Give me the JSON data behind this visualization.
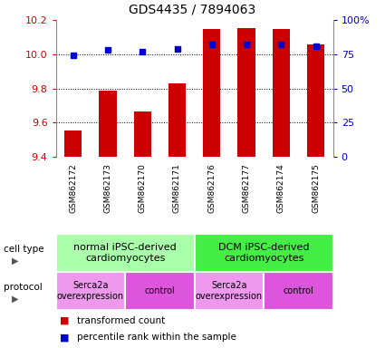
{
  "title": "GDS4435 / 7894063",
  "samples": [
    "GSM862172",
    "GSM862173",
    "GSM862170",
    "GSM862171",
    "GSM862176",
    "GSM862177",
    "GSM862174",
    "GSM862175"
  ],
  "bar_values": [
    9.555,
    9.785,
    9.665,
    9.83,
    10.145,
    10.15,
    10.145,
    10.055
  ],
  "percentile_values": [
    74,
    78,
    77,
    79,
    82,
    82,
    82,
    81
  ],
  "bar_color": "#cc0000",
  "dot_color": "#0000cc",
  "ylim_left": [
    9.4,
    10.2
  ],
  "ylim_right": [
    0,
    100
  ],
  "yticks_left": [
    9.4,
    9.6,
    9.8,
    10.0,
    10.2
  ],
  "yticks_right": [
    0,
    25,
    50,
    75,
    100
  ],
  "ytick_labels_right": [
    "0",
    "25",
    "50",
    "75",
    "100%"
  ],
  "cell_type_groups": [
    {
      "label": "normal iPSC-derived\ncardiomyocytes",
      "start": 0,
      "end": 4,
      "color": "#aaffaa"
    },
    {
      "label": "DCM iPSC-derived\ncardiomyocytes",
      "start": 4,
      "end": 8,
      "color": "#44ee44"
    }
  ],
  "protocol_groups": [
    {
      "label": "Serca2a\noverexpression",
      "start": 0,
      "end": 2,
      "color": "#ee99ee"
    },
    {
      "label": "control",
      "start": 2,
      "end": 4,
      "color": "#dd55dd"
    },
    {
      "label": "Serca2a\noverexpression",
      "start": 4,
      "end": 6,
      "color": "#ee99ee"
    },
    {
      "label": "control",
      "start": 6,
      "end": 8,
      "color": "#dd55dd"
    }
  ],
  "bar_width": 0.5,
  "grid_color": "#000000",
  "background_color": "#ffffff",
  "left_label_color": "#cc0000",
  "right_label_color": "#0000cc",
  "sample_bg_color": "#cccccc",
  "cell_type_label_fontsize": 8,
  "protocol_label_fontsize": 7,
  "tick_fontsize": 8,
  "title_fontsize": 10
}
